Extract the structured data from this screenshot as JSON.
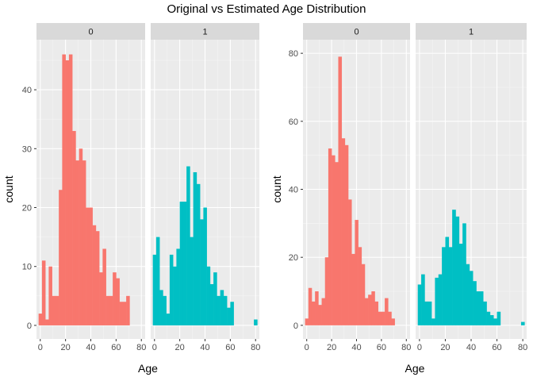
{
  "title": "Original vs Estimated Age Distribution",
  "chart_data": [
    {
      "type": "bar",
      "subtype": "histogram-faceted",
      "panel": "left",
      "xlabel": "Age",
      "ylabel": "count",
      "xlim": [
        -3,
        83
      ],
      "ylim": [
        -2.3,
        48.5
      ],
      "x_ticks": [
        0,
        20,
        40,
        60,
        80
      ],
      "y_ticks": [
        0,
        10,
        20,
        30,
        40
      ],
      "bin_width": 2.67,
      "grid": true,
      "facets": [
        {
          "label": "0",
          "color": "#F8766D",
          "bins": [
            {
              "x": 0,
              "count": 2
            },
            {
              "x": 2.67,
              "count": 11
            },
            {
              "x": 5.33,
              "count": 1
            },
            {
              "x": 8,
              "count": 10
            },
            {
              "x": 10.67,
              "count": 5
            },
            {
              "x": 13.33,
              "count": 5
            },
            {
              "x": 16,
              "count": 23
            },
            {
              "x": 18.67,
              "count": 46
            },
            {
              "x": 21.33,
              "count": 45
            },
            {
              "x": 24,
              "count": 46
            },
            {
              "x": 26.67,
              "count": 33
            },
            {
              "x": 29.33,
              "count": 28
            },
            {
              "x": 32,
              "count": 30
            },
            {
              "x": 34.67,
              "count": 28
            },
            {
              "x": 37.33,
              "count": 20
            },
            {
              "x": 40,
              "count": 20
            },
            {
              "x": 42.67,
              "count": 17
            },
            {
              "x": 45.33,
              "count": 16
            },
            {
              "x": 48,
              "count": 9
            },
            {
              "x": 50.67,
              "count": 13
            },
            {
              "x": 53.33,
              "count": 5
            },
            {
              "x": 56,
              "count": 5
            },
            {
              "x": 58.67,
              "count": 9
            },
            {
              "x": 61.33,
              "count": 8
            },
            {
              "x": 64,
              "count": 4
            },
            {
              "x": 66.67,
              "count": 4
            },
            {
              "x": 69.33,
              "count": 5
            },
            {
              "x": 72,
              "count": 0
            },
            {
              "x": 74.67,
              "count": 0
            },
            {
              "x": 77.33,
              "count": 0
            },
            {
              "x": 80,
              "count": 0
            }
          ]
        },
        {
          "label": "1",
          "color": "#00BFC4",
          "bins": [
            {
              "x": 0,
              "count": 12
            },
            {
              "x": 2.67,
              "count": 15
            },
            {
              "x": 5.33,
              "count": 6
            },
            {
              "x": 8,
              "count": 5
            },
            {
              "x": 10.67,
              "count": 2
            },
            {
              "x": 13.33,
              "count": 12
            },
            {
              "x": 16,
              "count": 10
            },
            {
              "x": 18.67,
              "count": 13
            },
            {
              "x": 21.33,
              "count": 21
            },
            {
              "x": 24,
              "count": 21
            },
            {
              "x": 26.67,
              "count": 27
            },
            {
              "x": 29.33,
              "count": 15
            },
            {
              "x": 32,
              "count": 26
            },
            {
              "x": 34.67,
              "count": 24
            },
            {
              "x": 37.33,
              "count": 18
            },
            {
              "x": 40,
              "count": 20
            },
            {
              "x": 42.67,
              "count": 10
            },
            {
              "x": 45.33,
              "count": 7
            },
            {
              "x": 48,
              "count": 9
            },
            {
              "x": 50.67,
              "count": 5
            },
            {
              "x": 53.33,
              "count": 6
            },
            {
              "x": 56,
              "count": 5
            },
            {
              "x": 58.67,
              "count": 3
            },
            {
              "x": 61.33,
              "count": 4
            },
            {
              "x": 64,
              "count": 0
            },
            {
              "x": 66.67,
              "count": 0
            },
            {
              "x": 69.33,
              "count": 0
            },
            {
              "x": 72,
              "count": 0
            },
            {
              "x": 74.67,
              "count": 0
            },
            {
              "x": 77.33,
              "count": 0
            },
            {
              "x": 80,
              "count": 1
            }
          ]
        }
      ]
    },
    {
      "type": "bar",
      "subtype": "histogram-faceted",
      "panel": "right",
      "xlabel": "Age",
      "ylabel": "count",
      "xlim": [
        -3,
        83
      ],
      "ylim": [
        -4,
        84
      ],
      "x_ticks": [
        0,
        20,
        40,
        60,
        80
      ],
      "y_ticks": [
        0,
        20,
        40,
        60,
        80
      ],
      "bin_width": 2.67,
      "grid": true,
      "facets": [
        {
          "label": "0",
          "color": "#F8766D",
          "bins": [
            {
              "x": 0,
              "count": 2
            },
            {
              "x": 2.67,
              "count": 11
            },
            {
              "x": 5.33,
              "count": 7
            },
            {
              "x": 8,
              "count": 10
            },
            {
              "x": 10.67,
              "count": 6
            },
            {
              "x": 13.33,
              "count": 8
            },
            {
              "x": 16,
              "count": 20
            },
            {
              "x": 18.67,
              "count": 52
            },
            {
              "x": 21.33,
              "count": 50
            },
            {
              "x": 24,
              "count": 48
            },
            {
              "x": 26.67,
              "count": 79
            },
            {
              "x": 29.33,
              "count": 55
            },
            {
              "x": 32,
              "count": 53
            },
            {
              "x": 34.67,
              "count": 37
            },
            {
              "x": 37.33,
              "count": 21
            },
            {
              "x": 40,
              "count": 31
            },
            {
              "x": 42.67,
              "count": 23
            },
            {
              "x": 45.33,
              "count": 18
            },
            {
              "x": 48,
              "count": 8
            },
            {
              "x": 50.67,
              "count": 9
            },
            {
              "x": 53.33,
              "count": 10
            },
            {
              "x": 56,
              "count": 7
            },
            {
              "x": 58.67,
              "count": 4
            },
            {
              "x": 61.33,
              "count": 4
            },
            {
              "x": 64,
              "count": 8
            },
            {
              "x": 66.67,
              "count": 4
            },
            {
              "x": 69.33,
              "count": 2
            },
            {
              "x": 72,
              "count": 0
            },
            {
              "x": 74.67,
              "count": 0
            },
            {
              "x": 77.33,
              "count": 0
            },
            {
              "x": 80,
              "count": 0
            }
          ]
        },
        {
          "label": "1",
          "color": "#00BFC4",
          "bins": [
            {
              "x": 0,
              "count": 12
            },
            {
              "x": 2.67,
              "count": 15
            },
            {
              "x": 5.33,
              "count": 7
            },
            {
              "x": 8,
              "count": 7
            },
            {
              "x": 10.67,
              "count": 2
            },
            {
              "x": 13.33,
              "count": 14
            },
            {
              "x": 16,
              "count": 15
            },
            {
              "x": 18.67,
              "count": 23
            },
            {
              "x": 21.33,
              "count": 26
            },
            {
              "x": 24,
              "count": 23
            },
            {
              "x": 26.67,
              "count": 34
            },
            {
              "x": 29.33,
              "count": 32
            },
            {
              "x": 32,
              "count": 24
            },
            {
              "x": 34.67,
              "count": 30
            },
            {
              "x": 37.33,
              "count": 18
            },
            {
              "x": 40,
              "count": 16
            },
            {
              "x": 42.67,
              "count": 13
            },
            {
              "x": 45.33,
              "count": 10
            },
            {
              "x": 48,
              "count": 10
            },
            {
              "x": 50.67,
              "count": 7
            },
            {
              "x": 53.33,
              "count": 4
            },
            {
              "x": 56,
              "count": 3
            },
            {
              "x": 58.67,
              "count": 2
            },
            {
              "x": 61.33,
              "count": 4
            },
            {
              "x": 64,
              "count": 0
            },
            {
              "x": 66.67,
              "count": 0
            },
            {
              "x": 69.33,
              "count": 0
            },
            {
              "x": 72,
              "count": 0
            },
            {
              "x": 74.67,
              "count": 0
            },
            {
              "x": 77.33,
              "count": 0
            },
            {
              "x": 80,
              "count": 1
            }
          ]
        }
      ]
    }
  ]
}
